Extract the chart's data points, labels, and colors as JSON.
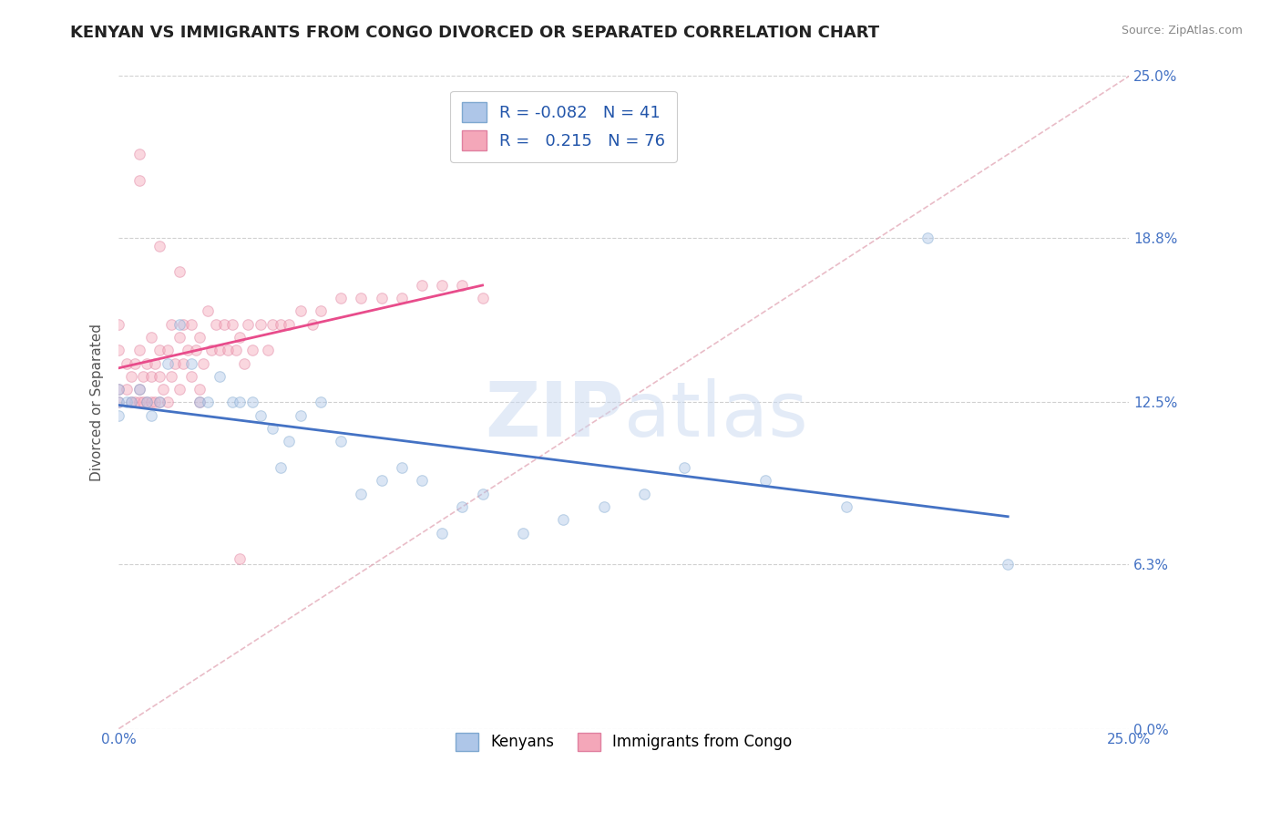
{
  "title": "KENYAN VS IMMIGRANTS FROM CONGO DIVORCED OR SEPARATED CORRELATION CHART",
  "source": "Source: ZipAtlas.com",
  "ylabel": "Divorced or Separated",
  "xmin": 0.0,
  "xmax": 0.25,
  "ymin": 0.0,
  "ymax": 0.25,
  "yticks": [
    0.0,
    0.063,
    0.125,
    0.188,
    0.25
  ],
  "ytick_labels": [
    "0.0%",
    "6.3%",
    "12.5%",
    "18.8%",
    "25.0%"
  ],
  "xtick_labels": [
    "0.0%",
    "25.0%"
  ],
  "watermark": "ZIPatlas",
  "legend_entry1_color": "#aec6e8",
  "legend_entry2_color": "#f4a7b9",
  "legend_label1": "Kenyans",
  "legend_label2": "Immigrants from Congo",
  "R1": -0.082,
  "N1": 41,
  "R2": 0.215,
  "N2": 76,
  "kenyans_x": [
    0.0,
    0.0,
    0.0,
    0.002,
    0.003,
    0.005,
    0.007,
    0.008,
    0.01,
    0.012,
    0.015,
    0.018,
    0.02,
    0.022,
    0.025,
    0.028,
    0.03,
    0.033,
    0.035,
    0.038,
    0.04,
    0.042,
    0.045,
    0.05,
    0.055,
    0.06,
    0.065,
    0.07,
    0.075,
    0.08,
    0.085,
    0.09,
    0.1,
    0.11,
    0.12,
    0.13,
    0.14,
    0.16,
    0.18,
    0.2,
    0.22
  ],
  "kenyans_y": [
    0.125,
    0.13,
    0.12,
    0.125,
    0.125,
    0.13,
    0.125,
    0.12,
    0.125,
    0.14,
    0.155,
    0.14,
    0.125,
    0.125,
    0.135,
    0.125,
    0.125,
    0.125,
    0.12,
    0.115,
    0.1,
    0.11,
    0.12,
    0.125,
    0.11,
    0.09,
    0.095,
    0.1,
    0.095,
    0.075,
    0.085,
    0.09,
    0.075,
    0.08,
    0.085,
    0.09,
    0.1,
    0.095,
    0.085,
    0.188,
    0.063
  ],
  "congo_x": [
    0.0,
    0.0,
    0.0,
    0.0,
    0.002,
    0.002,
    0.003,
    0.003,
    0.004,
    0.004,
    0.005,
    0.005,
    0.005,
    0.006,
    0.006,
    0.007,
    0.007,
    0.008,
    0.008,
    0.008,
    0.009,
    0.009,
    0.01,
    0.01,
    0.01,
    0.011,
    0.012,
    0.012,
    0.013,
    0.013,
    0.014,
    0.015,
    0.015,
    0.016,
    0.016,
    0.017,
    0.018,
    0.018,
    0.019,
    0.02,
    0.02,
    0.021,
    0.022,
    0.023,
    0.024,
    0.025,
    0.026,
    0.027,
    0.028,
    0.029,
    0.03,
    0.031,
    0.032,
    0.033,
    0.035,
    0.037,
    0.038,
    0.04,
    0.042,
    0.045,
    0.048,
    0.05,
    0.055,
    0.06,
    0.065,
    0.07,
    0.075,
    0.08,
    0.085,
    0.09,
    0.005,
    0.005,
    0.01,
    0.015,
    0.02,
    0.03
  ],
  "congo_y": [
    0.125,
    0.13,
    0.145,
    0.155,
    0.13,
    0.14,
    0.125,
    0.135,
    0.125,
    0.14,
    0.125,
    0.13,
    0.145,
    0.125,
    0.135,
    0.125,
    0.14,
    0.125,
    0.135,
    0.15,
    0.125,
    0.14,
    0.125,
    0.135,
    0.145,
    0.13,
    0.125,
    0.145,
    0.135,
    0.155,
    0.14,
    0.13,
    0.15,
    0.14,
    0.155,
    0.145,
    0.135,
    0.155,
    0.145,
    0.13,
    0.15,
    0.14,
    0.16,
    0.145,
    0.155,
    0.145,
    0.155,
    0.145,
    0.155,
    0.145,
    0.15,
    0.14,
    0.155,
    0.145,
    0.155,
    0.145,
    0.155,
    0.155,
    0.155,
    0.16,
    0.155,
    0.16,
    0.165,
    0.165,
    0.165,
    0.165,
    0.17,
    0.17,
    0.17,
    0.165,
    0.22,
    0.21,
    0.185,
    0.175,
    0.125,
    0.065
  ],
  "blue_line_color": "#4472c4",
  "pink_line_color": "#e84c8b",
  "dashed_line_color": "#e0a0b0",
  "background_color": "#ffffff",
  "grid_color": "#d0d0d0",
  "title_fontsize": 13,
  "axis_label_fontsize": 11,
  "tick_fontsize": 11,
  "scatter_size": 70,
  "scatter_alpha": 0.45
}
